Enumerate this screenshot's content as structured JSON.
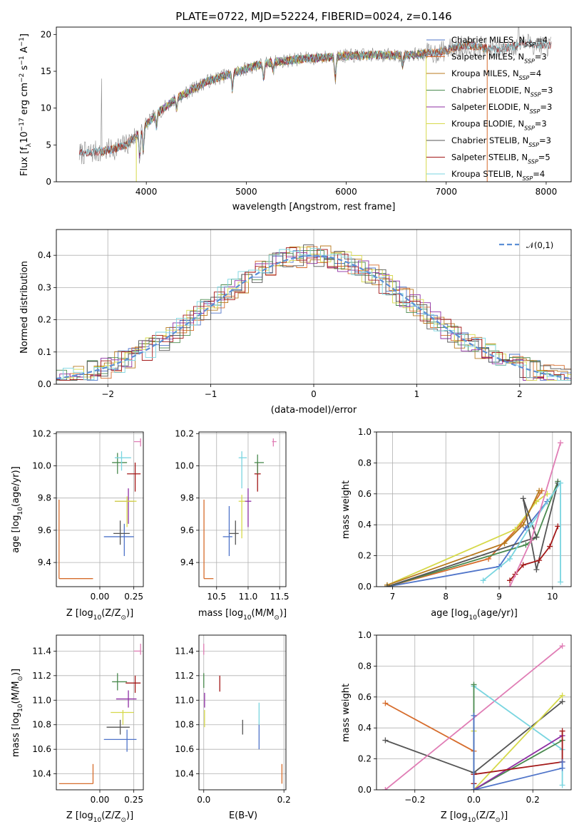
{
  "chart_data": [
    {
      "type": "line",
      "title": "PLATE=0722, MJD=52224, FIBERID=0024, z=0.146",
      "xlabel": "wavelength [Angstrom, rest frame]",
      "ylabel_parts": [
        "Flux [f",
        "λ",
        "10",
        "−17",
        " erg cm",
        "−2",
        " s",
        "−1",
        " A",
        "−1",
        "]"
      ],
      "xlim": [
        3100,
        8250
      ],
      "ylim": [
        0,
        21
      ],
      "xticks": [
        "4000",
        "5000",
        "6000",
        "7000",
        "8000"
      ],
      "xtick_values": [
        4000,
        5000,
        6000,
        7000,
        8000
      ],
      "yticks": [
        "0",
        "5",
        "10",
        "15",
        "20"
      ],
      "ytick_values": [
        0,
        5,
        10,
        15,
        20
      ],
      "grid": false,
      "legend_position": "right",
      "continuum": {
        "x": [
          3330,
          3600,
          3800,
          3950,
          4100,
          4300,
          4600,
          4900,
          5100,
          5300,
          5500,
          5800,
          6000,
          6300,
          6600,
          6900,
          7200,
          7500,
          7800,
          8000
        ],
        "y": [
          3.8,
          4.2,
          5.0,
          7.0,
          9.2,
          11.3,
          13.6,
          14.9,
          15.8,
          16.3,
          16.6,
          16.9,
          17.1,
          17.2,
          17.2,
          17.5,
          18.6,
          17.9,
          18.8,
          18.5
        ]
      },
      "series": [
        {
          "name": "Chabrier MILES",
          "nssp": "4",
          "color": "#4f74c9",
          "xrange": [
            3540,
            7410
          ]
        },
        {
          "name": "Salpeter MILES",
          "nssp": "3",
          "color": "#d66c2c",
          "xrange": [
            3540,
            7410
          ]
        },
        {
          "name": "Kroupa MILES",
          "nssp": "4",
          "color": "#b87a1e",
          "xrange": [
            3540,
            7410
          ]
        },
        {
          "name": "Chabrier ELODIE",
          "nssp": "3",
          "color": "#4a8a4f",
          "xrange": [
            3900,
            6800
          ]
        },
        {
          "name": "Salpeter ELODIE",
          "nssp": "3",
          "color": "#8e2ea3",
          "xrange": [
            3900,
            6800
          ]
        },
        {
          "name": "Kroupa ELODIE",
          "nssp": "3",
          "color": "#d6d94a",
          "xrange": [
            3900,
            6800
          ]
        },
        {
          "name": "Chabrier STELIB",
          "nssp": "3",
          "color": "#555555",
          "xrange": [
            3330,
            8050
          ]
        },
        {
          "name": "Salpeter STELIB",
          "nssp": "5",
          "color": "#a31818",
          "xrange": [
            3330,
            8050
          ]
        },
        {
          "name": "Kroupa STELIB",
          "nssp": "4",
          "color": "#79d5e0",
          "xrange": [
            3330,
            8050
          ]
        }
      ]
    },
    {
      "type": "histogram",
      "xlabel": "(data-model)/error",
      "ylabel": "Normed distribution",
      "xlim": [
        -2.5,
        2.5
      ],
      "ylim": [
        0,
        0.48
      ],
      "xticks": [
        "−2",
        "−1",
        "0",
        "1",
        "2"
      ],
      "xtick_values": [
        -2,
        -1,
        0,
        1,
        2
      ],
      "yticks": [
        "0.0",
        "0.1",
        "0.2",
        "0.3",
        "0.4"
      ],
      "ytick_values": [
        0,
        0.1,
        0.2,
        0.3,
        0.4
      ],
      "grid": true,
      "legend": "𝒩(0,1)",
      "legend_position": "top-right",
      "reference_curve": "standard normal density",
      "series_colors": [
        "#4f74c9",
        "#d66c2c",
        "#b87a1e",
        "#4a8a4f",
        "#8e2ea3",
        "#d6d94a",
        "#555555",
        "#a31818",
        "#79d5e0"
      ]
    },
    {
      "type": "scatter",
      "xlabel": "Z [log10(Z/Z⊙)]",
      "ylabel": "age  [log10(age/yr)]",
      "xlim": [
        -0.32,
        0.32
      ],
      "ylim": [
        9.25,
        10.21
      ],
      "xticks": [
        "0.00",
        "0.25"
      ],
      "xtick_values": [
        0,
        0.25
      ],
      "yticks": [
        "9.4",
        "9.6",
        "9.8",
        "10.0",
        "10.2"
      ],
      "ytick_values": [
        9.4,
        9.6,
        9.8,
        10.0,
        10.2
      ],
      "grid": true,
      "points": [
        {
          "color": "#d66c2c",
          "x": -0.3,
          "xlo": -0.3,
          "xhi": -0.05,
          "y": 9.3,
          "ylo": 9.3,
          "yhi": 9.79
        },
        {
          "color": "#4f74c9",
          "x": 0.18,
          "xlo": 0.03,
          "xhi": 0.25,
          "y": 9.56,
          "ylo": 9.44,
          "yhi": 9.64
        },
        {
          "color": "#555555",
          "x": 0.15,
          "xlo": 0.1,
          "xhi": 0.22,
          "y": 9.58,
          "ylo": 9.51,
          "yhi": 9.66
        },
        {
          "color": "#8e2ea3",
          "x": 0.21,
          "xlo": 0.11,
          "xhi": 0.25,
          "y": 9.78,
          "ylo": 9.64,
          "yhi": 9.86
        },
        {
          "color": "#d6d94a",
          "x": 0.2,
          "xlo": 0.11,
          "xhi": 0.27,
          "y": 9.78,
          "ylo": 9.62,
          "yhi": 9.81
        },
        {
          "color": "#a31818",
          "x": 0.26,
          "xlo": 0.2,
          "xhi": 0.3,
          "y": 9.95,
          "ylo": 9.84,
          "yhi": 10.02
        },
        {
          "color": "#4a8a4f",
          "x": 0.13,
          "xlo": 0.09,
          "xhi": 0.2,
          "y": 10.02,
          "ylo": 9.95,
          "yhi": 10.08
        },
        {
          "color": "#79d5e0",
          "x": 0.16,
          "xlo": 0.11,
          "xhi": 0.23,
          "y": 10.05,
          "ylo": 9.97,
          "yhi": 10.09
        },
        {
          "color": "#e07db5",
          "x": 0.3,
          "xlo": 0.25,
          "xhi": 0.3,
          "y": 10.15,
          "ylo": 10.12,
          "yhi": 10.17
        }
      ]
    },
    {
      "type": "scatter",
      "xlabel": "mass [log10(M/M⊙)]",
      "ylabel": "",
      "xlim": [
        10.22,
        11.6
      ],
      "ylim": [
        9.25,
        10.21
      ],
      "xticks": [
        "10.5",
        "11.0",
        "11.5"
      ],
      "xtick_values": [
        10.5,
        11.0,
        11.5
      ],
      "yticks": [
        "9.4",
        "9.6",
        "9.8",
        "10.0",
        "10.2"
      ],
      "ytick_values": [
        9.4,
        9.6,
        9.8,
        10.0,
        10.2
      ],
      "grid": true,
      "points": [
        {
          "color": "#d66c2c",
          "x": 10.3,
          "xlo": 10.3,
          "xhi": 10.45,
          "y": 9.3,
          "ylo": 9.3,
          "yhi": 9.79
        },
        {
          "color": "#4f74c9",
          "x": 10.7,
          "xlo": 10.6,
          "xhi": 10.75,
          "y": 9.56,
          "ylo": 9.44,
          "yhi": 9.75
        },
        {
          "color": "#555555",
          "x": 10.8,
          "xlo": 10.7,
          "xhi": 10.85,
          "y": 9.58,
          "ylo": 9.51,
          "yhi": 9.66
        },
        {
          "color": "#8e2ea3",
          "x": 11.0,
          "xlo": 10.95,
          "xhi": 11.05,
          "y": 9.78,
          "ylo": 9.62,
          "yhi": 9.86
        },
        {
          "color": "#d6d94a",
          "x": 10.9,
          "xlo": 10.85,
          "xhi": 10.95,
          "y": 9.78,
          "ylo": 9.55,
          "yhi": 9.82
        },
        {
          "color": "#a31818",
          "x": 11.15,
          "xlo": 11.1,
          "xhi": 11.2,
          "y": 9.95,
          "ylo": 9.84,
          "yhi": 10.02
        },
        {
          "color": "#4a8a4f",
          "x": 11.15,
          "xlo": 11.1,
          "xhi": 11.25,
          "y": 10.02,
          "ylo": 9.95,
          "yhi": 10.07
        },
        {
          "color": "#79d5e0",
          "x": 10.9,
          "xlo": 10.85,
          "xhi": 10.98,
          "y": 10.05,
          "ylo": 9.86,
          "yhi": 10.09
        },
        {
          "color": "#e07db5",
          "x": 11.4,
          "xlo": 11.38,
          "xhi": 11.45,
          "y": 10.15,
          "ylo": 10.12,
          "yhi": 10.17
        }
      ]
    },
    {
      "type": "line",
      "xlabel": "age  [log10(age/yr)]",
      "ylabel": "mass weight",
      "xlim": [
        6.7,
        10.35
      ],
      "ylim": [
        0,
        1
      ],
      "xticks": [
        "7",
        "8",
        "9",
        "10"
      ],
      "xtick_values": [
        7,
        8,
        9,
        10
      ],
      "yticks": [
        "0.0",
        "0.2",
        "0.4",
        "0.6",
        "0.8",
        "1.0"
      ],
      "ytick_values": [
        0,
        0.2,
        0.4,
        0.6,
        0.8,
        1.0
      ],
      "grid": true,
      "series": [
        {
          "color": "#d66c2c",
          "x": [
            6.9,
            8.8,
            9.4,
            9.8
          ],
          "y": [
            0.0,
            0.18,
            0.4,
            0.62
          ]
        },
        {
          "color": "#4f74c9",
          "x": [
            6.9,
            9.0,
            9.5,
            9.9
          ],
          "y": [
            0.0,
            0.13,
            0.38,
            0.55
          ]
        },
        {
          "color": "#d6d94a",
          "x": [
            6.9,
            9.3,
            9.7,
            9.9
          ],
          "y": [
            0.01,
            0.37,
            0.55,
            0.6
          ]
        },
        {
          "color": "#b87a1e",
          "x": [
            6.9,
            9.1,
            9.45,
            9.75
          ],
          "y": [
            0.01,
            0.28,
            0.4,
            0.62
          ]
        },
        {
          "color": "#4a8a4f",
          "x": [
            6.9,
            9.5,
            9.7,
            10.1
          ],
          "y": [
            0.0,
            0.27,
            0.32,
            0.68
          ]
        },
        {
          "color": "#555555",
          "x": [
            6.9,
            9.7,
            9.45,
            9.7,
            10.1
          ],
          "y": [
            0.0,
            0.32,
            0.57,
            0.11,
            0.67
          ]
        },
        {
          "color": "#a31818",
          "x": [
            9.2,
            9.3,
            9.45,
            9.75,
            9.95,
            10.1
          ],
          "y": [
            0.04,
            0.08,
            0.14,
            0.17,
            0.26,
            0.39
          ]
        },
        {
          "color": "#79d5e0",
          "x": [
            8.7,
            9.2,
            9.6,
            10.15,
            10.15
          ],
          "y": [
            0.04,
            0.18,
            0.4,
            0.67,
            0.03
          ]
        },
        {
          "color": "#e07db5",
          "x": [
            9.2,
            9.6,
            10.15
          ],
          "y": [
            0.0,
            0.3,
            0.93
          ]
        }
      ]
    },
    {
      "type": "scatter",
      "xlabel": "Z [log10(Z/Z⊙)]",
      "ylabel": "mass [log10(M/M⊙)]",
      "xlim": [
        -0.32,
        0.32
      ],
      "ylim": [
        10.27,
        11.53
      ],
      "xticks": [
        "0.00",
        "0.25"
      ],
      "xtick_values": [
        0,
        0.25
      ],
      "yticks": [
        "10.4",
        "10.6",
        "10.8",
        "11.0",
        "11.2",
        "11.4"
      ],
      "ytick_values": [
        10.4,
        10.6,
        10.8,
        11.0,
        11.2,
        11.4
      ],
      "grid": true,
      "points": [
        {
          "color": "#d66c2c",
          "x": -0.05,
          "xlo": -0.3,
          "xhi": -0.05,
          "y": 10.32,
          "ylo": 10.32,
          "yhi": 10.48
        },
        {
          "color": "#4f74c9",
          "x": 0.2,
          "xlo": 0.03,
          "xhi": 0.27,
          "y": 10.68,
          "ylo": 10.58,
          "yhi": 10.76
        },
        {
          "color": "#555555",
          "x": 0.15,
          "xlo": 0.05,
          "xhi": 0.22,
          "y": 10.78,
          "ylo": 10.72,
          "yhi": 10.84
        },
        {
          "color": "#d6d94a",
          "x": 0.17,
          "xlo": 0.08,
          "xhi": 0.25,
          "y": 10.9,
          "ylo": 10.8,
          "yhi": 10.92
        },
        {
          "color": "#8e2ea3",
          "x": 0.21,
          "xlo": 0.12,
          "xhi": 0.27,
          "y": 11.01,
          "ylo": 10.94,
          "yhi": 11.08
        },
        {
          "color": "#a31818",
          "x": 0.26,
          "xlo": 0.19,
          "xhi": 0.3,
          "y": 11.14,
          "ylo": 11.06,
          "yhi": 11.2
        },
        {
          "color": "#4a8a4f",
          "x": 0.13,
          "xlo": 0.09,
          "xhi": 0.2,
          "y": 11.15,
          "ylo": 11.08,
          "yhi": 11.22
        },
        {
          "color": "#e07db5",
          "x": 0.3,
          "xlo": 0.25,
          "xhi": 0.3,
          "y": 11.4,
          "ylo": 11.37,
          "yhi": 11.46
        }
      ]
    },
    {
      "type": "scatter",
      "xlabel": "E(B-V)",
      "ylabel": "",
      "xlim": [
        -0.012,
        0.205
      ],
      "ylim": [
        10.27,
        11.53
      ],
      "xticks": [
        "0.0",
        "0.2"
      ],
      "xtick_values": [
        0,
        0.2
      ],
      "yticks": [
        "10.4",
        "10.6",
        "10.8",
        "11.0",
        "11.2",
        "11.4"
      ],
      "ytick_values": [
        10.4,
        10.6,
        10.8,
        11.0,
        11.2,
        11.4
      ],
      "grid": true,
      "points": [
        {
          "color": "#d66c2c",
          "x": 0.195,
          "ylo": 10.32,
          "yhi": 10.48
        },
        {
          "color": "#4f74c9",
          "x": 0.138,
          "ylo": 10.6,
          "yhi": 10.8
        },
        {
          "color": "#79d5e0",
          "x": 0.138,
          "ylo": 10.8,
          "yhi": 10.98
        },
        {
          "color": "#555555",
          "x": 0.097,
          "ylo": 10.72,
          "yhi": 10.84
        },
        {
          "color": "#d6d94a",
          "x": 0.002,
          "ylo": 10.78,
          "yhi": 10.92
        },
        {
          "color": "#8e2ea3",
          "x": 0.002,
          "ylo": 10.94,
          "yhi": 11.06
        },
        {
          "color": "#a31818",
          "x": 0.04,
          "ylo": 11.07,
          "yhi": 11.2
        },
        {
          "color": "#4a8a4f",
          "x": 0.0,
          "ylo": 11.1,
          "yhi": 11.22
        },
        {
          "color": "#e07db5",
          "x": 0.0,
          "ylo": 11.37,
          "yhi": 11.46
        }
      ]
    },
    {
      "type": "line",
      "xlabel": "Z [log10(Z/Z⊙)]",
      "ylabel": "mass weight",
      "xlim": [
        -0.33,
        0.33
      ],
      "ylim": [
        0,
        1
      ],
      "xticks": [
        "−0.2",
        "0.0",
        "0.2"
      ],
      "xtick_values": [
        -0.2,
        0,
        0.2
      ],
      "yticks": [
        "0.0",
        "0.2",
        "0.4",
        "0.6",
        "0.8",
        "1.0"
      ],
      "ytick_values": [
        0,
        0.2,
        0.4,
        0.6,
        0.8,
        1.0
      ],
      "grid": true,
      "series": [
        {
          "color": "#d66c2c",
          "x": [
            -0.3,
            0.0
          ],
          "y": [
            0.56,
            0.25
          ]
        },
        {
          "color": "#555555",
          "x": [
            -0.3,
            0.0,
            0.3
          ],
          "y": [
            0.32,
            0.11,
            0.57
          ]
        },
        {
          "color": "#e07db5",
          "x": [
            -0.3,
            0.3
          ],
          "y": [
            0.0,
            0.93
          ]
        },
        {
          "color": "#79d5e0",
          "x": [
            0.0,
            0.3,
            0.3
          ],
          "y": [
            0.67,
            0.26,
            0.03
          ]
        },
        {
          "color": "#d6d94a",
          "x": [
            0.0,
            0.0,
            0.3
          ],
          "y": [
            0.38,
            0.0,
            0.61
          ]
        },
        {
          "color": "#4a8a4f",
          "x": [
            0.0,
            0.0,
            0.3
          ],
          "y": [
            0.68,
            0.0,
            0.32
          ]
        },
        {
          "color": "#8e2ea3",
          "x": [
            0.0,
            0.3
          ],
          "y": [
            0.0,
            0.35
          ]
        },
        {
          "color": "#a31818",
          "x": [
            0.0,
            0.0,
            0.3,
            0.3
          ],
          "y": [
            0.04,
            0.1,
            0.18,
            0.38
          ]
        },
        {
          "color": "#4f74c9",
          "x": [
            0.0,
            0.0,
            0.3,
            0.3
          ],
          "y": [
            0.48,
            0.0,
            0.14,
            0.18
          ]
        }
      ]
    }
  ]
}
